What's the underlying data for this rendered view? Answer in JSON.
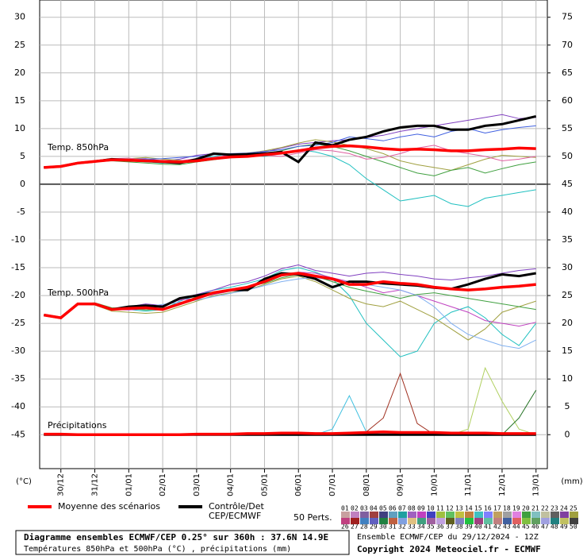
{
  "chart_data": {
    "type": "line",
    "panel_labels": [
      "Temp. 850hPa",
      "Temp. 500hPa",
      "Précipitations"
    ],
    "ylabel": "(°C)",
    "y2label": "(mm)",
    "ylim": [
      -51.1,
      33.1
    ],
    "yticks": [
      30,
      25,
      20,
      15,
      10,
      5,
      0,
      -5,
      -10,
      -15,
      -20,
      -25,
      -30,
      -35,
      -40,
      -45
    ],
    "y2lim": [
      -6.1,
      78.1
    ],
    "y2ticks": [
      75,
      70,
      65,
      60,
      55,
      50,
      45,
      40,
      35,
      30,
      25,
      20,
      15,
      10,
      5,
      0
    ],
    "xlim": [
      -3,
      356
    ],
    "xticks": [
      {
        "value": 12,
        "label": "30/12"
      },
      {
        "value": 36,
        "label": "31/12"
      },
      {
        "value": 60,
        "label": "01/01"
      },
      {
        "value": 84,
        "label": "02/01"
      },
      {
        "value": 108,
        "label": "03/01"
      },
      {
        "value": 132,
        "label": "04/01"
      },
      {
        "value": 156,
        "label": "05/01"
      },
      {
        "value": 180,
        "label": "06/01"
      },
      {
        "value": 204,
        "label": "07/01"
      },
      {
        "value": 228,
        "label": "08/01"
      },
      {
        "value": 252,
        "label": "09/01"
      },
      {
        "value": 276,
        "label": "10/01"
      },
      {
        "value": 300,
        "label": "11/01"
      },
      {
        "value": 324,
        "label": "12/01"
      },
      {
        "value": 348,
        "label": "13/01"
      }
    ],
    "grid": true,
    "x": [
      0,
      12,
      24,
      36,
      48,
      60,
      72,
      84,
      96,
      108,
      120,
      132,
      144,
      156,
      168,
      180,
      192,
      204,
      216,
      228,
      240,
      252,
      264,
      276,
      288,
      300,
      312,
      324,
      336,
      348
    ],
    "series": [
      {
        "color": "#8040c0",
        "style": "member",
        "values": [
          3,
          3.2,
          3.8,
          4.1,
          4.3,
          4.5,
          4.6,
          4.2,
          4.5,
          5.2,
          5.5,
          5,
          5.3,
          5.8,
          6.5,
          7.2,
          7.5,
          7.8,
          8,
          8.4,
          8.8,
          9.5,
          10,
          10.5,
          11,
          11.5,
          12,
          12.5,
          11.8,
          12
        ]
      },
      {
        "color": "#20c0c0",
        "style": "member",
        "values": [
          3,
          3.2,
          3.7,
          4,
          4.5,
          4.4,
          4,
          3.8,
          4,
          4.5,
          5,
          5.5,
          5.2,
          5,
          5.5,
          6.2,
          5.8,
          5,
          3.5,
          1,
          -1,
          -3,
          -2.5,
          -2,
          -3.5,
          -4,
          -2.5,
          -2,
          -1.5,
          -1
        ]
      },
      {
        "color": "#a0a040",
        "style": "member",
        "values": [
          3,
          3.3,
          3.9,
          4.2,
          4.4,
          4.6,
          4.8,
          4.5,
          4.3,
          4,
          4.6,
          5.2,
          5.6,
          6,
          6.6,
          7.4,
          8,
          7.6,
          7,
          6.4,
          5.5,
          4.2,
          3.5,
          3,
          2.5,
          3.5,
          4.5,
          5.2,
          5,
          4.8
        ]
      },
      {
        "color": "#40a040",
        "style": "member",
        "values": [
          3,
          3.1,
          3.8,
          4,
          4.2,
          4,
          3.8,
          3.6,
          3.5,
          4,
          4.4,
          4.8,
          5,
          5.5,
          6,
          6.8,
          7.2,
          6.8,
          6,
          5,
          4,
          3,
          2,
          1.5,
          2.5,
          3,
          2,
          2.8,
          3.5,
          4
        ]
      },
      {
        "color": "#4060e0",
        "style": "member",
        "values": [
          3,
          3.2,
          3.9,
          4.2,
          4.5,
          4.4,
          4.5,
          4.6,
          4.8,
          5,
          5.3,
          5.5,
          5.6,
          5.9,
          6.2,
          6.8,
          7,
          7.5,
          8.5,
          8.2,
          7.8,
          8.5,
          9,
          8.5,
          9.5,
          10,
          9.2,
          9.8,
          10.2,
          10.5
        ]
      },
      {
        "color": "#e060a0",
        "style": "member",
        "values": [
          3,
          3.2,
          3.8,
          4.2,
          4.6,
          4.7,
          4.3,
          4,
          4.2,
          4.6,
          4.8,
          5.2,
          5.5,
          5.2,
          5,
          5.6,
          6.2,
          6,
          5.5,
          4.5,
          4.8,
          5.5,
          6.5,
          7,
          6,
          5.5,
          5,
          4.2,
          4.5,
          5
        ]
      },
      {
        "color": "#000000",
        "style": "control",
        "values": [
          3,
          3.2,
          3.8,
          4.1,
          4.5,
          4.3,
          4.2,
          4,
          3.8,
          4.5,
          5.5,
          5.3,
          5.4,
          5.5,
          5.8,
          4,
          7.5,
          7,
          8,
          8.5,
          9.5,
          10.2,
          10.5,
          10.5,
          9.8,
          9.8,
          10.5,
          10.8,
          11.5,
          12.2
        ]
      },
      {
        "color": "#ff0000",
        "style": "mean",
        "values": [
          3,
          3.2,
          3.8,
          4.1,
          4.4,
          4.3,
          4.2,
          4.1,
          4,
          4.2,
          4.6,
          4.9,
          5,
          5.3,
          5.6,
          6,
          6.5,
          6.8,
          6.9,
          6.7,
          6.4,
          6.2,
          6.3,
          6.2,
          6,
          6,
          6.2,
          6.3,
          6.5,
          6.4
        ]
      },
      {
        "color": "#20c0c0",
        "style": "member",
        "values": [
          -23.5,
          -24,
          -21.5,
          -21.6,
          -22.4,
          -22.5,
          -22.8,
          -22.5,
          -21,
          -20,
          -19,
          -18.5,
          -17.8,
          -17,
          -15.5,
          -15,
          -15.8,
          -17,
          -20,
          -25,
          -28,
          -31,
          -30,
          -25,
          -23,
          -22,
          -24,
          -27,
          -29,
          -25
        ]
      },
      {
        "color": "#8040c0",
        "style": "member",
        "values": [
          -23.5,
          -24,
          -21.5,
          -21.4,
          -22.6,
          -22,
          -21.5,
          -21.8,
          -20.5,
          -19.8,
          -19,
          -18,
          -17.5,
          -16.5,
          -15.2,
          -14.5,
          -15.5,
          -16,
          -16.5,
          -16,
          -15.8,
          -16.2,
          -16.5,
          -17,
          -17.2,
          -16.8,
          -16.5,
          -16,
          -15.5,
          -15.2
        ]
      },
      {
        "color": "#a0a040",
        "style": "member",
        "values": [
          -23.5,
          -24,
          -21.5,
          -21.7,
          -22.8,
          -23,
          -23.2,
          -23,
          -22,
          -21,
          -20,
          -19.5,
          -19,
          -18,
          -17,
          -16.5,
          -17.5,
          -19,
          -20.5,
          -21.5,
          -22,
          -21,
          -22.5,
          -24,
          -26,
          -28,
          -26,
          -23,
          -22,
          -21
        ]
      },
      {
        "color": "#c040c0",
        "style": "member",
        "values": [
          -23.5,
          -24,
          -21.5,
          -21.5,
          -22.5,
          -22.6,
          -22.4,
          -21.8,
          -20.8,
          -20.5,
          -19.8,
          -19.2,
          -18.8,
          -17.5,
          -16.5,
          -15.8,
          -16,
          -16.8,
          -17.5,
          -18.5,
          -19.5,
          -19,
          -20,
          -21,
          -22,
          -23,
          -24.5,
          -25,
          -25.5,
          -24.8
        ]
      },
      {
        "color": "#80b0f0",
        "style": "member",
        "values": [
          -23.5,
          -24,
          -21.5,
          -21.6,
          -22.3,
          -22.2,
          -22,
          -21.6,
          -21.2,
          -20.8,
          -20.2,
          -19.6,
          -19,
          -18.2,
          -17.5,
          -17,
          -16.8,
          -17.2,
          -17.5,
          -18,
          -18.5,
          -19,
          -20,
          -22,
          -25,
          -27,
          -28,
          -29,
          -29.5,
          -28
        ]
      },
      {
        "color": "#40a040",
        "style": "member",
        "values": [
          -23.5,
          -24,
          -21.5,
          -21.3,
          -22.2,
          -22.3,
          -22.6,
          -22.4,
          -21.5,
          -20.2,
          -19.5,
          -19.2,
          -18.3,
          -17.8,
          -16.8,
          -16.2,
          -16.5,
          -17.5,
          -18.5,
          -19.2,
          -19.8,
          -20.5,
          -19.8,
          -19.5,
          -20,
          -20.5,
          -21,
          -21.5,
          -22,
          -22.5
        ]
      },
      {
        "color": "#000000",
        "style": "control",
        "values": [
          -23.5,
          -24,
          -21.5,
          -21.5,
          -22.5,
          -22,
          -21.8,
          -22,
          -20.5,
          -20,
          -19.5,
          -19,
          -19,
          -17,
          -16,
          -16.2,
          -17,
          -18.5,
          -17.5,
          -17.5,
          -17.8,
          -18,
          -18.2,
          -18.6,
          -18.8,
          -18,
          -17,
          -16.2,
          -16.5,
          -16
        ]
      },
      {
        "color": "#ff0000",
        "style": "mean",
        "values": [
          -23.5,
          -24,
          -21.5,
          -21.5,
          -22.5,
          -22.3,
          -22.2,
          -22.5,
          -21.5,
          -20.5,
          -19.5,
          -19,
          -18.5,
          -17.5,
          -16.3,
          -16,
          -16.5,
          -17,
          -18,
          -18,
          -17.5,
          -17.8,
          -18,
          -18.5,
          -18.8,
          -19,
          -18.8,
          -18.5,
          -18.3,
          -18
        ]
      },
      {
        "color": "#a03020",
        "style": "member",
        "axis": "y2",
        "values": [
          0,
          0,
          0,
          0,
          0,
          0,
          0,
          0,
          0,
          0,
          0,
          0,
          0,
          0,
          0,
          0,
          0,
          0,
          0,
          0.5,
          3,
          11,
          2,
          0,
          0,
          0,
          0,
          0,
          0,
          0
        ]
      },
      {
        "color": "#b0d060",
        "style": "member",
        "axis": "y2",
        "values": [
          0,
          0,
          0,
          0,
          0,
          0,
          0,
          0,
          0,
          0,
          0,
          0,
          0,
          0,
          0,
          0,
          0,
          0,
          0,
          0,
          0,
          0,
          0,
          0,
          0,
          1,
          12,
          6,
          1,
          0
        ]
      },
      {
        "color": "#40c0e0",
        "style": "member",
        "axis": "y2",
        "values": [
          0,
          0,
          0,
          0,
          0,
          0,
          0,
          0,
          0,
          0,
          0,
          0,
          0,
          0,
          0,
          0,
          0,
          1,
          7,
          0.5,
          0,
          0,
          0,
          0,
          0,
          0,
          0,
          0,
          0,
          0
        ]
      },
      {
        "color": "#207020",
        "style": "member",
        "axis": "y2",
        "values": [
          0,
          0,
          0,
          0,
          0,
          0,
          0,
          0,
          0,
          0,
          0,
          0,
          0,
          0,
          0,
          0,
          0,
          0,
          0,
          0,
          0,
          0,
          0,
          0,
          0,
          0,
          0,
          0,
          3,
          8
        ]
      },
      {
        "color": "#000000",
        "style": "control",
        "axis": "y2",
        "values": [
          0,
          0,
          0,
          0,
          0,
          0,
          0,
          0,
          0,
          0,
          0,
          0,
          0,
          0,
          0,
          0,
          0,
          0,
          0,
          0,
          0,
          0,
          0,
          0,
          0,
          0,
          0,
          0,
          0,
          0
        ]
      },
      {
        "color": "#ff0000",
        "style": "mean",
        "axis": "y2",
        "values": [
          0.1,
          0.1,
          0,
          0,
          0,
          0,
          0,
          0,
          0,
          0.1,
          0.1,
          0.1,
          0.2,
          0.2,
          0.3,
          0.3,
          0.2,
          0.2,
          0.3,
          0.4,
          0.5,
          0.4,
          0.4,
          0.4,
          0.3,
          0.3,
          0.3,
          0.2,
          0.2,
          0.2
        ]
      }
    ],
    "legend": [
      {
        "name": [
          "Moyenne des scénarios"
        ],
        "color": "#ff0000"
      },
      {
        "name": [
          "Contrôle/Det",
          "CEP/ECMWF"
        ],
        "color": "#000000"
      }
    ],
    "perturbations": {
      "label": "50 Perts.",
      "numbers": [
        "01",
        "02",
        "03",
        "04",
        "05",
        "06",
        "07",
        "08",
        "09",
        "10",
        "11",
        "12",
        "13",
        "14",
        "15",
        "16",
        "17",
        "18",
        "19",
        "20",
        "21",
        "22",
        "23",
        "24",
        "25",
        "26",
        "27",
        "28",
        "29",
        "30",
        "31",
        "32",
        "33",
        "34",
        "35",
        "36",
        "37",
        "38",
        "39",
        "40",
        "41",
        "42",
        "43",
        "44",
        "45",
        "46",
        "47",
        "48",
        "49",
        "50"
      ],
      "colors": [
        "#c8a0a0",
        "#c080c0",
        "#8060a0",
        "#a04040",
        "#404080",
        "#60a0c0",
        "#20a0a0",
        "#a060c0",
        "#c040c0",
        "#4040c0",
        "#a0c040",
        "#60c060",
        "#c0c040",
        "#c08040",
        "#40c0c0",
        "#8080ff",
        "#c0a060",
        "#a0a0a0",
        "#e080e0",
        "#40a040",
        "#80c0c0",
        "#c0c0a0",
        "#606060",
        "#8040a0",
        "#a0a040",
        "#c04080",
        "#a02020",
        "#4080c0",
        "#6060c0",
        "#208040",
        "#c06040",
        "#80a0e0",
        "#e0c080",
        "#40a080",
        "#a060a0",
        "#c0a0e0",
        "#606020",
        "#8080c0",
        "#20c040",
        "#a04080",
        "#60c0a0",
        "#c08080",
        "#4060a0",
        "#e06060",
        "#80c040",
        "#60a060",
        "#a0a0e0",
        "#208080",
        "#c0c060",
        "#404040"
      ]
    },
    "footer": {
      "box_lines": [
        "Diagramme ensembles ECMWF/CEP 0.25° sur 360h : 37.6N 14.9E",
        "Températures 850hPa et 500hPa (°C) , précipitations (mm)"
      ],
      "run": "Ensemble ECMWF/CEP du 29/12/2024 - 12Z",
      "copyright": "Copyright 2024 Meteociel.fr - ECMWF"
    }
  }
}
